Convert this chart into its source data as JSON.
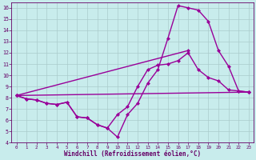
{
  "xlabel": "Windchill (Refroidissement éolien,°C)",
  "bg_color": "#c8ecec",
  "line_color": "#990099",
  "grid_color": "#aacccc",
  "axis_color": "#660066",
  "text_color": "#660066",
  "xlim": [
    -0.5,
    23.5
  ],
  "ylim": [
    4,
    16.5
  ],
  "xticks": [
    0,
    1,
    2,
    3,
    4,
    5,
    6,
    7,
    8,
    9,
    10,
    11,
    12,
    13,
    14,
    15,
    16,
    17,
    18,
    19,
    20,
    21,
    22,
    23
  ],
  "yticks": [
    4,
    5,
    6,
    7,
    8,
    9,
    10,
    11,
    12,
    13,
    14,
    15,
    16
  ],
  "line1_x": [
    0,
    1,
    2,
    3,
    4,
    5,
    6,
    7,
    8,
    9,
    10,
    11,
    12,
    13,
    14,
    15,
    16,
    17,
    18,
    19,
    20,
    21,
    22,
    23
  ],
  "line1_y": [
    8.2,
    7.9,
    7.8,
    7.5,
    7.4,
    7.6,
    6.3,
    6.2,
    5.6,
    5.3,
    4.5,
    6.5,
    7.5,
    9.3,
    10.5,
    13.3,
    16.2,
    16.0,
    15.8,
    14.8,
    12.2,
    10.8,
    8.6,
    8.5
  ],
  "line2_x": [
    0,
    1,
    2,
    3,
    4,
    5,
    6,
    7,
    8,
    9,
    10,
    11,
    12,
    13,
    14,
    15,
    16,
    17,
    18,
    19,
    20,
    21,
    22,
    23
  ],
  "line2_y": [
    8.2,
    7.9,
    7.8,
    7.5,
    7.4,
    7.6,
    6.3,
    6.2,
    5.6,
    5.3,
    6.5,
    7.2,
    9.0,
    10.5,
    10.9,
    11.0,
    11.3,
    12.0,
    10.5,
    9.8,
    9.5,
    8.7,
    8.6,
    8.5
  ],
  "line3_x": [
    0,
    23
  ],
  "line3_y": [
    8.2,
    8.5
  ],
  "line4_x": [
    0,
    17
  ],
  "line4_y": [
    8.2,
    12.2
  ],
  "marker": "D",
  "markersize": 2.5,
  "linewidth": 1.0
}
